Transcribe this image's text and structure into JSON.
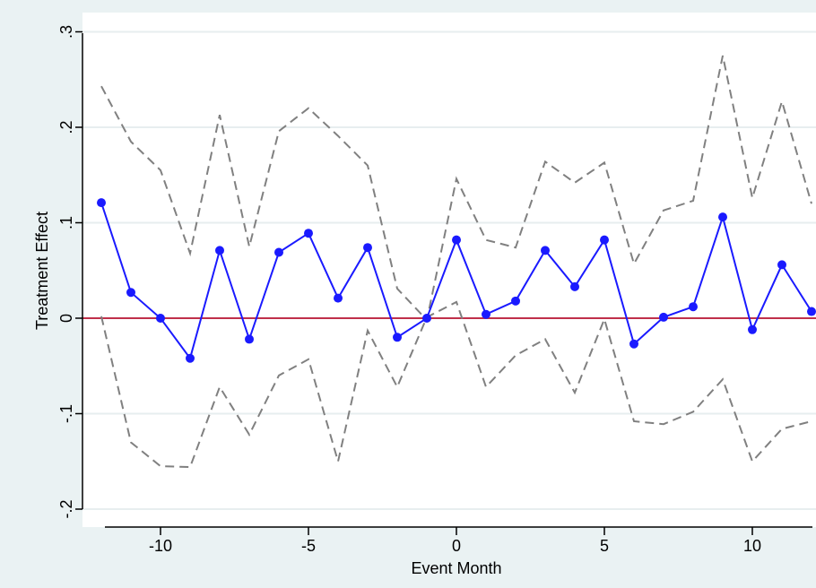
{
  "chart_data": {
    "type": "line",
    "title": "",
    "xlabel": "Event Month",
    "ylabel": "Treatment Effect",
    "xlim": [
      -12,
      12
    ],
    "ylim": [
      -0.2,
      0.3
    ],
    "grid": true,
    "legend": "none",
    "x_ticks": [
      {
        "value": -10,
        "label": "-10"
      },
      {
        "value": -5,
        "label": "-5"
      },
      {
        "value": 0,
        "label": "0"
      },
      {
        "value": 5,
        "label": "5"
      },
      {
        "value": 10,
        "label": "10"
      }
    ],
    "y_ticks": [
      {
        "value": -0.2,
        "label": "-.2"
      },
      {
        "value": -0.1,
        "label": "-.1"
      },
      {
        "value": 0,
        "label": "0"
      },
      {
        "value": 0.1,
        "label": ".1"
      },
      {
        "value": 0.2,
        "label": ".2"
      },
      {
        "value": 0.3,
        "label": ".3"
      }
    ],
    "x": [
      -12,
      -11,
      -10,
      -9,
      -8,
      -7,
      -6,
      -5,
      -4,
      -3,
      -2,
      -1,
      0,
      1,
      2,
      3,
      4,
      5,
      6,
      7,
      8,
      9,
      10,
      11,
      12
    ],
    "series": [
      {
        "role": "estimate",
        "color": "#1a1aff",
        "style": "solid-markers",
        "values": [
          0.121,
          0.027,
          0.0,
          -0.042,
          0.071,
          -0.022,
          0.069,
          0.089,
          0.021,
          0.074,
          -0.02,
          0.0,
          0.082,
          0.004,
          0.018,
          0.071,
          0.033,
          0.082,
          -0.027,
          0.001,
          0.012,
          0.106,
          -0.012,
          0.056,
          0.007
        ]
      },
      {
        "role": "upper-ci",
        "color": "#808080",
        "style": "dashed",
        "values": [
          0.243,
          0.185,
          0.155,
          0.068,
          0.213,
          0.075,
          0.196,
          0.22,
          0.191,
          0.16,
          0.031,
          -0.002,
          0.146,
          0.082,
          0.074,
          0.164,
          0.142,
          0.163,
          0.057,
          0.113,
          0.123,
          0.275,
          0.126,
          0.227,
          0.12
        ]
      },
      {
        "role": "lower-ci",
        "color": "#808080",
        "style": "dashed",
        "values": [
          0.002,
          -0.13,
          -0.155,
          -0.156,
          -0.072,
          -0.122,
          -0.06,
          -0.043,
          -0.15,
          -0.013,
          -0.072,
          0.001,
          0.017,
          -0.072,
          -0.039,
          -0.022,
          -0.078,
          -0.001,
          -0.108,
          -0.111,
          -0.098,
          -0.064,
          -0.15,
          -0.116,
          -0.108
        ]
      }
    ],
    "reference_line": {
      "y": 0,
      "color": "#c0304a"
    },
    "colors": {
      "background": "#eaf2f3",
      "plot_background": "#ffffff",
      "gridline": "#e7eeef",
      "axis": "#000000"
    }
  }
}
